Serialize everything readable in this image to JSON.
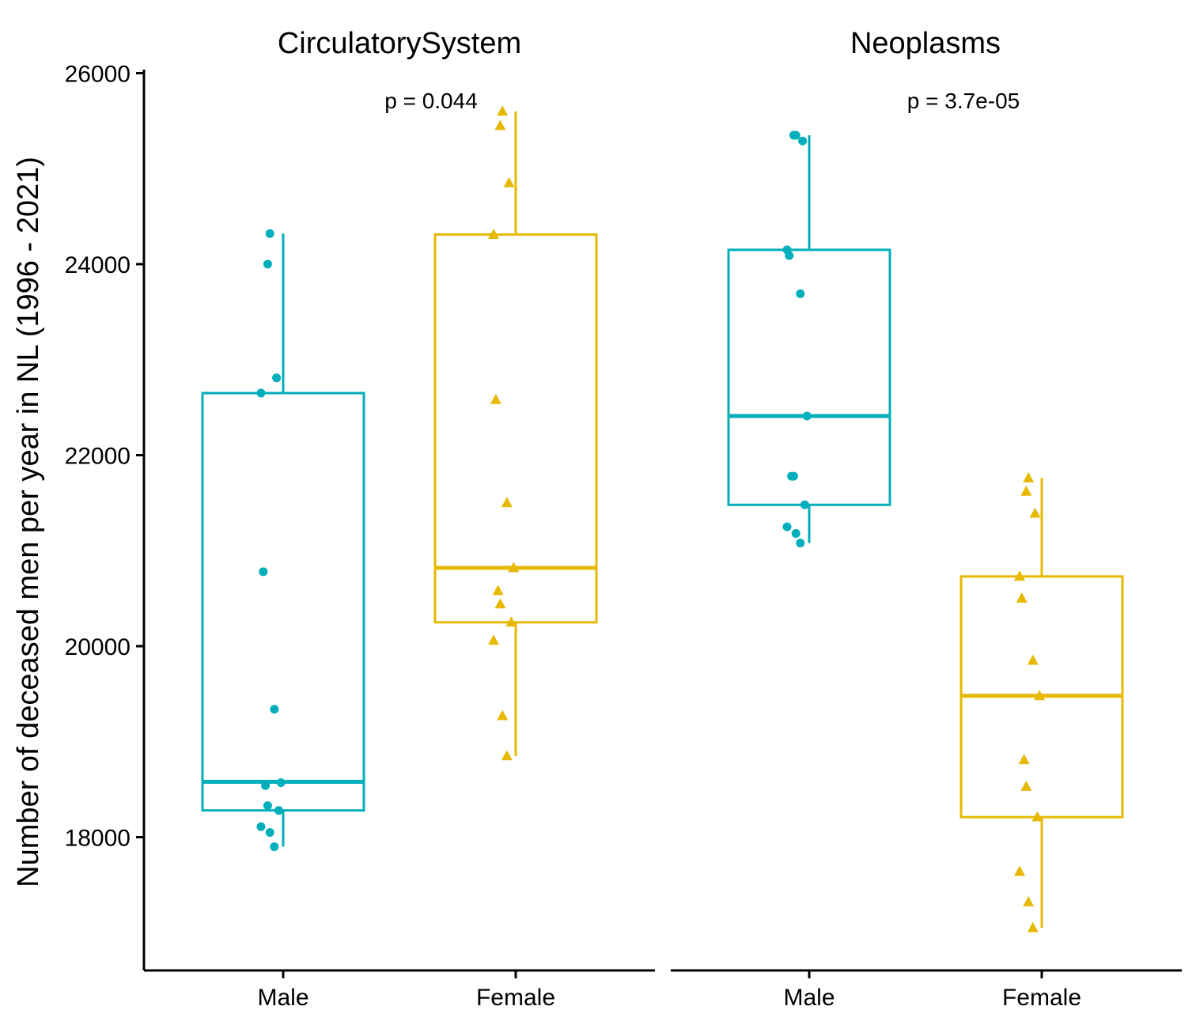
{
  "colors": {
    "male": "#00AFBB",
    "female": "#E7B800",
    "axis": "#000000"
  },
  "y_axis": {
    "label": "Number of deceased men per year in NL (1996 - 2021)",
    "ticks": [
      "18000",
      "20000",
      "22000",
      "24000",
      "26000"
    ]
  },
  "chart_data": [
    {
      "type": "box",
      "title": "CirculatorySystem",
      "annotation": "p = 0.044",
      "categories": [
        "Male",
        "Female"
      ],
      "ylim": [
        16900,
        26100
      ],
      "series": [
        {
          "name": "Male",
          "marker": "circle",
          "box": {
            "whisker_low": 17900,
            "q1": 18280,
            "median": 18580,
            "q3": 22650,
            "whisker_high": 24320
          },
          "points": [
            24320,
            24000,
            22810,
            22650,
            20780,
            19340,
            18570,
            18540,
            18330,
            18280,
            18110,
            18050,
            17900
          ]
        },
        {
          "name": "Female",
          "marker": "triangle",
          "box": {
            "whisker_low": 18850,
            "q1": 20250,
            "median": 20820,
            "q3": 24310,
            "whisker_high": 25600
          },
          "points": [
            25600,
            25450,
            24850,
            24310,
            22580,
            21500,
            20820,
            20580,
            20440,
            20250,
            20060,
            19270,
            18850
          ]
        }
      ]
    },
    {
      "type": "box",
      "title": "Neoplasms",
      "annotation": "p = 3.7e-05",
      "categories": [
        "Male",
        "Female"
      ],
      "ylim": [
        16900,
        26100
      ],
      "series": [
        {
          "name": "Male",
          "marker": "circle",
          "box": {
            "whisker_low": 21080,
            "q1": 21480,
            "median": 22410,
            "q3": 24150,
            "whisker_high": 25350
          },
          "points": [
            25350,
            25350,
            25290,
            24150,
            24090,
            23690,
            22410,
            21780,
            21780,
            21480,
            21250,
            21180,
            21080
          ]
        },
        {
          "name": "Female",
          "marker": "triangle",
          "box": {
            "whisker_low": 17050,
            "q1": 18210,
            "median": 19480,
            "q3": 20730,
            "whisker_high": 21760
          },
          "points": [
            21760,
            21620,
            21390,
            20730,
            20500,
            19850,
            19480,
            18810,
            18530,
            18210,
            17640,
            17320,
            17050
          ]
        }
      ]
    }
  ]
}
